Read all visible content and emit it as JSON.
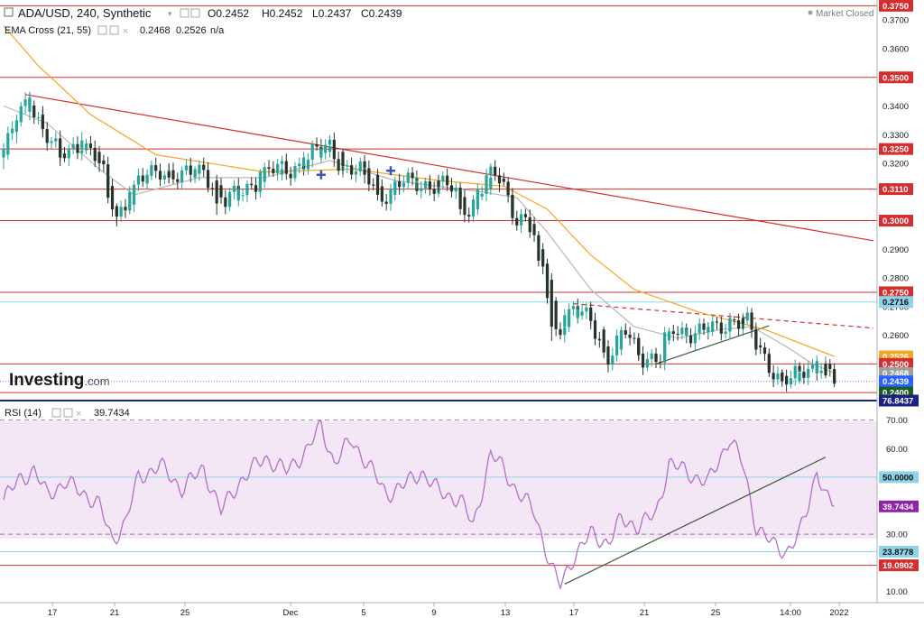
{
  "header": {
    "symbol": "ADA/USD, 240, Synthetic",
    "ohlc": {
      "open": "O0.2452",
      "high": "H0.2452",
      "low": "L0.2437",
      "close": "C0.2439"
    },
    "market_status": "Market Closed",
    "ema_label": "EMA Cross (21, 55)",
    "ema_value_1": "0.2468",
    "ema_value_2": "0.2526",
    "ema_value_3": "n/a",
    "rsi_label": "RSI (14)",
    "rsi_value": "39.7434",
    "brand_name": "Investing",
    "brand_suffix": ".com"
  },
  "colors": {
    "bull": "#26a69a",
    "bear": "#26352b",
    "ema21": "#b8b8b8",
    "ema55": "#f5a623",
    "support_resistance": "#d32f2f",
    "rsi_line": "#b46fc8",
    "rsi_band": "#f3e6f5",
    "cyan_level": "#8fd3e8",
    "trendline": "#3c5a3a"
  },
  "chart_data": [
    {
      "type": "candlestick",
      "title": "ADA/USD, 240, Synthetic",
      "ylim": [
        0.2372,
        0.377
      ],
      "y_ticks": [
        0.26,
        0.27,
        0.28,
        0.29,
        0.32,
        0.33,
        0.34,
        0.36,
        0.37
      ],
      "x_ticks": [
        "17",
        "21",
        "25",
        "Dec",
        "5",
        "9",
        "13",
        "17",
        "21",
        "25",
        "14:00",
        "2022"
      ],
      "horizontal_levels": [
        0.375,
        0.35,
        0.325,
        0.311,
        0.3,
        0.275,
        0.25,
        0.24
      ],
      "cyan_levels": [
        0.2716
      ],
      "price_tags": [
        {
          "label": "0.3750",
          "value": 0.375,
          "color": "#d32f2f"
        },
        {
          "label": "0.3500",
          "value": 0.35,
          "color": "#d32f2f"
        },
        {
          "label": "0.3250",
          "value": 0.325,
          "color": "#d32f2f"
        },
        {
          "label": "0.3110",
          "value": 0.311,
          "color": "#d32f2f"
        },
        {
          "label": "0.3000",
          "value": 0.3,
          "color": "#d32f2f"
        },
        {
          "label": "0.2750",
          "value": 0.275,
          "color": "#d32f2f"
        },
        {
          "label": "0.2716",
          "value": 0.2716,
          "color": "#8fd3e8"
        },
        {
          "label": "0.2526",
          "value": 0.2526,
          "color": "#f5a623"
        },
        {
          "label": "0.2500",
          "value": 0.25,
          "color": "#d32f2f"
        },
        {
          "label": "0.2468",
          "value": 0.2468,
          "color": "#9e9e9e"
        },
        {
          "label": "0.2439",
          "value": 0.2439,
          "color": "#2962ff"
        },
        {
          "label": "0.2400",
          "value": 0.24,
          "color": "#1b5e20"
        }
      ],
      "anchors": [
        {
          "t": 0,
          "v": 0.323
        },
        {
          "t": 3,
          "v": 0.335
        },
        {
          "t": 6,
          "v": 0.343
        },
        {
          "t": 9,
          "v": 0.332
        },
        {
          "t": 13,
          "v": 0.322
        },
        {
          "t": 18,
          "v": 0.328
        },
        {
          "t": 22,
          "v": 0.32
        },
        {
          "t": 26,
          "v": 0.302
        },
        {
          "t": 31,
          "v": 0.313
        },
        {
          "t": 36,
          "v": 0.318
        },
        {
          "t": 41,
          "v": 0.315
        },
        {
          "t": 46,
          "v": 0.318
        },
        {
          "t": 51,
          "v": 0.306
        },
        {
          "t": 56,
          "v": 0.312
        },
        {
          "t": 61,
          "v": 0.317
        },
        {
          "t": 66,
          "v": 0.318
        },
        {
          "t": 71,
          "v": 0.323
        },
        {
          "t": 75,
          "v": 0.326
        },
        {
          "t": 78,
          "v": 0.319
        },
        {
          "t": 83,
          "v": 0.316
        },
        {
          "t": 87,
          "v": 0.309
        },
        {
          "t": 92,
          "v": 0.313
        },
        {
          "t": 97,
          "v": 0.313
        },
        {
          "t": 102,
          "v": 0.312
        },
        {
          "t": 107,
          "v": 0.304
        },
        {
          "t": 111,
          "v": 0.314
        },
        {
          "t": 114,
          "v": 0.316
        },
        {
          "t": 118,
          "v": 0.301
        },
        {
          "t": 121,
          "v": 0.3
        },
        {
          "t": 123,
          "v": 0.286
        },
        {
          "t": 125,
          "v": 0.282
        },
        {
          "t": 127,
          "v": 0.262
        },
        {
          "t": 131,
          "v": 0.268
        },
        {
          "t": 135,
          "v": 0.266
        },
        {
          "t": 139,
          "v": 0.252
        },
        {
          "t": 143,
          "v": 0.261
        },
        {
          "t": 147,
          "v": 0.253
        },
        {
          "t": 151,
          "v": 0.251
        },
        {
          "t": 154,
          "v": 0.262
        },
        {
          "t": 159,
          "v": 0.261
        },
        {
          "t": 164,
          "v": 0.262
        },
        {
          "t": 168,
          "v": 0.266
        },
        {
          "t": 171,
          "v": 0.264
        },
        {
          "t": 174,
          "v": 0.254
        },
        {
          "t": 178,
          "v": 0.246
        },
        {
          "t": 181,
          "v": 0.244
        },
        {
          "t": 185,
          "v": 0.248
        },
        {
          "t": 188,
          "v": 0.251
        },
        {
          "t": 191,
          "v": 0.2439
        }
      ],
      "candles": [
        {
          "x": 0,
          "o": 0.322,
          "h": 0.327,
          "l": 0.318,
          "c": 0.325
        },
        {
          "x": 3,
          "o": 0.331,
          "h": 0.337,
          "l": 0.327,
          "c": 0.335
        },
        {
          "x": 6,
          "o": 0.338,
          "h": 0.345,
          "l": 0.335,
          "c": 0.343
        },
        {
          "x": 9,
          "o": 0.337,
          "h": 0.34,
          "l": 0.329,
          "c": 0.332
        },
        {
          "x": 13,
          "o": 0.326,
          "h": 0.328,
          "l": 0.319,
          "c": 0.322
        },
        {
          "x": 18,
          "o": 0.325,
          "h": 0.331,
          "l": 0.323,
          "c": 0.328
        },
        {
          "x": 22,
          "o": 0.324,
          "h": 0.326,
          "l": 0.317,
          "c": 0.32
        },
        {
          "x": 24,
          "o": 0.315,
          "h": 0.317,
          "l": 0.306,
          "c": 0.308
        },
        {
          "x": 26,
          "o": 0.305,
          "h": 0.306,
          "l": 0.298,
          "c": 0.302
        },
        {
          "x": 29,
          "o": 0.305,
          "h": 0.312,
          "l": 0.303,
          "c": 0.31
        },
        {
          "x": 33,
          "o": 0.313,
          "h": 0.318,
          "l": 0.311,
          "c": 0.316
        },
        {
          "x": 38,
          "o": 0.317,
          "h": 0.32,
          "l": 0.313,
          "c": 0.315
        },
        {
          "x": 44,
          "o": 0.315,
          "h": 0.319,
          "l": 0.313,
          "c": 0.318
        },
        {
          "x": 49,
          "o": 0.314,
          "h": 0.316,
          "l": 0.302,
          "c": 0.306
        },
        {
          "x": 54,
          "o": 0.307,
          "h": 0.313,
          "l": 0.305,
          "c": 0.311
        },
        {
          "x": 59,
          "o": 0.313,
          "h": 0.318,
          "l": 0.311,
          "c": 0.317
        },
        {
          "x": 64,
          "o": 0.316,
          "h": 0.32,
          "l": 0.314,
          "c": 0.318
        },
        {
          "x": 69,
          "o": 0.319,
          "h": 0.324,
          "l": 0.317,
          "c": 0.322
        },
        {
          "x": 73,
          "o": 0.322,
          "h": 0.327,
          "l": 0.32,
          "c": 0.325
        },
        {
          "x": 75,
          "o": 0.324,
          "h": 0.329,
          "l": 0.322,
          "c": 0.326
        },
        {
          "x": 78,
          "o": 0.324,
          "h": 0.325,
          "l": 0.316,
          "c": 0.319
        },
        {
          "x": 83,
          "o": 0.318,
          "h": 0.32,
          "l": 0.313,
          "c": 0.316
        },
        {
          "x": 86,
          "o": 0.316,
          "h": 0.318,
          "l": 0.307,
          "c": 0.309
        },
        {
          "x": 90,
          "o": 0.309,
          "h": 0.314,
          "l": 0.307,
          "c": 0.313
        },
        {
          "x": 95,
          "o": 0.313,
          "h": 0.316,
          "l": 0.311,
          "c": 0.314
        },
        {
          "x": 100,
          "o": 0.314,
          "h": 0.316,
          "l": 0.31,
          "c": 0.312
        },
        {
          "x": 105,
          "o": 0.31,
          "h": 0.311,
          "l": 0.302,
          "c": 0.304
        },
        {
          "x": 109,
          "o": 0.304,
          "h": 0.313,
          "l": 0.302,
          "c": 0.311
        },
        {
          "x": 112,
          "o": 0.311,
          "h": 0.318,
          "l": 0.309,
          "c": 0.315
        },
        {
          "x": 114,
          "o": 0.315,
          "h": 0.317,
          "l": 0.31,
          "c": 0.313
        },
        {
          "x": 117,
          "o": 0.309,
          "h": 0.311,
          "l": 0.3,
          "c": 0.302
        },
        {
          "x": 121,
          "o": 0.3,
          "h": 0.301,
          "l": 0.294,
          "c": 0.296
        },
        {
          "x": 123,
          "o": 0.29,
          "h": 0.291,
          "l": 0.284,
          "c": 0.286
        },
        {
          "x": 125,
          "o": 0.285,
          "h": 0.286,
          "l": 0.271,
          "c": 0.273
        },
        {
          "x": 126,
          "o": 0.272,
          "h": 0.273,
          "l": 0.258,
          "c": 0.263
        },
        {
          "x": 129,
          "o": 0.263,
          "h": 0.269,
          "l": 0.261,
          "c": 0.267
        },
        {
          "x": 132,
          "o": 0.266,
          "h": 0.271,
          "l": 0.264,
          "c": 0.269
        },
        {
          "x": 135,
          "o": 0.268,
          "h": 0.269,
          "l": 0.262,
          "c": 0.265
        },
        {
          "x": 138,
          "o": 0.262,
          "h": 0.263,
          "l": 0.252,
          "c": 0.254
        },
        {
          "x": 142,
          "o": 0.255,
          "h": 0.262,
          "l": 0.253,
          "c": 0.26
        },
        {
          "x": 146,
          "o": 0.258,
          "h": 0.259,
          "l": 0.251,
          "c": 0.253
        },
        {
          "x": 150,
          "o": 0.253,
          "h": 0.254,
          "l": 0.25,
          "c": 0.251
        },
        {
          "x": 152,
          "o": 0.252,
          "h": 0.263,
          "l": 0.251,
          "c": 0.261
        },
        {
          "x": 157,
          "o": 0.26,
          "h": 0.263,
          "l": 0.258,
          "c": 0.262
        },
        {
          "x": 162,
          "o": 0.261,
          "h": 0.264,
          "l": 0.259,
          "c": 0.263
        },
        {
          "x": 167,
          "o": 0.263,
          "h": 0.267,
          "l": 0.262,
          "c": 0.266
        },
        {
          "x": 170,
          "o": 0.266,
          "h": 0.267,
          "l": 0.262,
          "c": 0.264
        },
        {
          "x": 173,
          "o": 0.262,
          "h": 0.263,
          "l": 0.253,
          "c": 0.255
        },
        {
          "x": 176,
          "o": 0.253,
          "h": 0.254,
          "l": 0.247,
          "c": 0.248
        },
        {
          "x": 179,
          "o": 0.247,
          "h": 0.248,
          "l": 0.242,
          "c": 0.244
        },
        {
          "x": 183,
          "o": 0.244,
          "h": 0.248,
          "l": 0.243,
          "c": 0.247
        },
        {
          "x": 187,
          "o": 0.247,
          "h": 0.253,
          "l": 0.246,
          "c": 0.251
        },
        {
          "x": 189,
          "o": 0.25,
          "h": 0.251,
          "l": 0.245,
          "c": 0.246
        },
        {
          "x": 191,
          "o": 0.2452,
          "h": 0.2452,
          "l": 0.2437,
          "c": 0.2439
        }
      ],
      "ema21": [
        {
          "t": 0,
          "v": 0.34
        },
        {
          "t": 10,
          "v": 0.334
        },
        {
          "t": 22,
          "v": 0.318
        },
        {
          "t": 30,
          "v": 0.309
        },
        {
          "t": 45,
          "v": 0.315
        },
        {
          "t": 60,
          "v": 0.315
        },
        {
          "t": 75,
          "v": 0.321
        },
        {
          "t": 90,
          "v": 0.314
        },
        {
          "t": 110,
          "v": 0.31
        },
        {
          "t": 118,
          "v": 0.308
        },
        {
          "t": 125,
          "v": 0.296
        },
        {
          "t": 135,
          "v": 0.276
        },
        {
          "t": 145,
          "v": 0.263
        },
        {
          "t": 155,
          "v": 0.259
        },
        {
          "t": 165,
          "v": 0.262
        },
        {
          "t": 172,
          "v": 0.263
        },
        {
          "t": 180,
          "v": 0.256
        },
        {
          "t": 186,
          "v": 0.25
        },
        {
          "t": 191,
          "v": 0.2468
        }
      ],
      "ema55": [
        {
          "t": 0,
          "v": 0.368
        },
        {
          "t": 8,
          "v": 0.354
        },
        {
          "t": 20,
          "v": 0.337
        },
        {
          "t": 35,
          "v": 0.323
        },
        {
          "t": 60,
          "v": 0.317
        },
        {
          "t": 80,
          "v": 0.318
        },
        {
          "t": 100,
          "v": 0.314
        },
        {
          "t": 115,
          "v": 0.312
        },
        {
          "t": 125,
          "v": 0.304
        },
        {
          "t": 135,
          "v": 0.288
        },
        {
          "t": 145,
          "v": 0.276
        },
        {
          "t": 160,
          "v": 0.268
        },
        {
          "t": 175,
          "v": 0.262
        },
        {
          "t": 191,
          "v": 0.2526
        }
      ],
      "markers": [
        {
          "t": 73,
          "v": 0.316
        },
        {
          "t": 89,
          "v": 0.3174
        }
      ],
      "trendlines": [
        {
          "style": "solid",
          "color": "#d32f2f",
          "from": {
            "t": 5,
            "v": 0.344
          },
          "to": {
            "t": 200,
            "v": 0.293
          }
        },
        {
          "style": "dashed",
          "color": "#d32f2f",
          "from": {
            "t": 131,
            "v": 0.271
          },
          "to": {
            "t": 200,
            "v": 0.2625
          }
        },
        {
          "style": "solid",
          "color": "#3c5a3a",
          "from": {
            "t": 150,
            "v": 0.25
          },
          "to": {
            "t": 176,
            "v": 0.2633
          }
        }
      ]
    },
    {
      "type": "line",
      "title": "RSI (14)",
      "ylim": [
        6.0,
        76.8437
      ],
      "y_ticks": [
        10.0,
        20.0,
        30.0,
        40.0,
        60.0,
        70.0
      ],
      "band": [
        30,
        70
      ],
      "band_lines": [
        70,
        30
      ],
      "blue_level": 50,
      "cyan_level": 23.8778,
      "red_level": 19.0902,
      "value_tags": [
        {
          "label": "76.8437",
          "value": 76.8437,
          "color": "#1a237e"
        },
        {
          "label": "50.0000",
          "value": 50.0,
          "color": "#8fd3e8"
        },
        {
          "label": "39.7434",
          "value": 39.7434,
          "color": "#8e24aa"
        },
        {
          "label": "23.8778",
          "value": 23.8778,
          "color": "#8fd3e8"
        },
        {
          "label": "19.0902",
          "value": 19.0902,
          "color": "#d32f2f"
        }
      ],
      "series": [
        {
          "t": 0,
          "v": 42
        },
        {
          "t": 4,
          "v": 50
        },
        {
          "t": 7,
          "v": 52
        },
        {
          "t": 10,
          "v": 44
        },
        {
          "t": 14,
          "v": 48
        },
        {
          "t": 18,
          "v": 45
        },
        {
          "t": 22,
          "v": 40
        },
        {
          "t": 25,
          "v": 28
        },
        {
          "t": 28,
          "v": 34
        },
        {
          "t": 31,
          "v": 50
        },
        {
          "t": 36,
          "v": 54
        },
        {
          "t": 41,
          "v": 46
        },
        {
          "t": 46,
          "v": 53
        },
        {
          "t": 50,
          "v": 38
        },
        {
          "t": 54,
          "v": 48
        },
        {
          "t": 60,
          "v": 57
        },
        {
          "t": 65,
          "v": 52
        },
        {
          "t": 70,
          "v": 60
        },
        {
          "t": 73,
          "v": 68
        },
        {
          "t": 76,
          "v": 55
        },
        {
          "t": 80,
          "v": 63
        },
        {
          "t": 84,
          "v": 54
        },
        {
          "t": 88,
          "v": 44
        },
        {
          "t": 92,
          "v": 47
        },
        {
          "t": 96,
          "v": 52
        },
        {
          "t": 100,
          "v": 45
        },
        {
          "t": 105,
          "v": 42
        },
        {
          "t": 108,
          "v": 33
        },
        {
          "t": 112,
          "v": 58
        },
        {
          "t": 115,
          "v": 53
        },
        {
          "t": 118,
          "v": 45
        },
        {
          "t": 122,
          "v": 38
        },
        {
          "t": 124,
          "v": 28
        },
        {
          "t": 126,
          "v": 18
        },
        {
          "t": 128,
          "v": 12
        },
        {
          "t": 131,
          "v": 22
        },
        {
          "t": 135,
          "v": 30
        },
        {
          "t": 139,
          "v": 27
        },
        {
          "t": 142,
          "v": 35
        },
        {
          "t": 146,
          "v": 33
        },
        {
          "t": 150,
          "v": 37
        },
        {
          "t": 153,
          "v": 55
        },
        {
          "t": 158,
          "v": 51
        },
        {
          "t": 162,
          "v": 48
        },
        {
          "t": 167,
          "v": 64
        },
        {
          "t": 170,
          "v": 54
        },
        {
          "t": 173,
          "v": 33
        },
        {
          "t": 177,
          "v": 26
        },
        {
          "t": 180,
          "v": 24
        },
        {
          "t": 183,
          "v": 30
        },
        {
          "t": 185,
          "v": 40
        },
        {
          "t": 187,
          "v": 53
        },
        {
          "t": 189,
          "v": 43
        },
        {
          "t": 191,
          "v": 39.7434
        }
      ],
      "trendline": {
        "color": "#3c5a3a",
        "from": {
          "t": 129,
          "v": 12.5
        },
        "to": {
          "t": 189,
          "v": 57.0
        }
      }
    }
  ]
}
